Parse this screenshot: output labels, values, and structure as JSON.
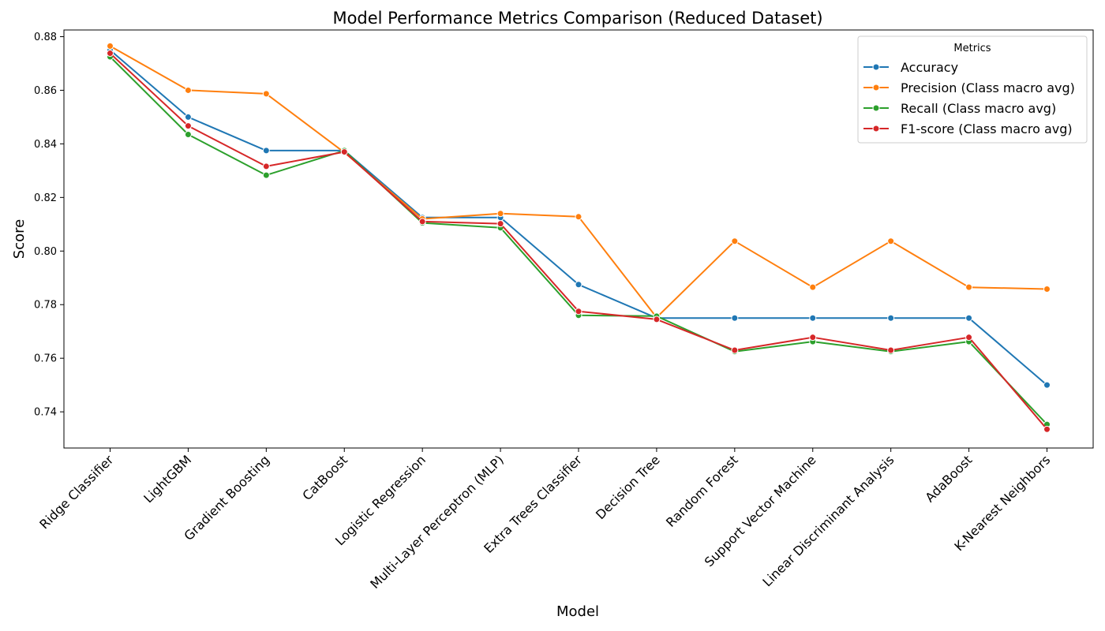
{
  "chart_data": {
    "type": "line",
    "title": "Model Performance Metrics Comparison (Reduced Dataset)",
    "xlabel": "Model",
    "ylabel": "Score",
    "categories": [
      "Ridge Classifier",
      "LightGBM",
      "Gradient Boosting",
      "CatBoost",
      "Logistic Regression",
      "Multi-Layer Perceptron (MLP)",
      "Extra Trees Classifier",
      "Decision Tree",
      "Random Forest",
      "Support Vector Machine",
      "Linear Discriminant Analysis",
      "AdaBoost",
      "K-Nearest Neighbors"
    ],
    "ylim": [
      0.7265,
      0.8825
    ],
    "yticks": [
      0.74,
      0.76,
      0.78,
      0.8,
      0.82,
      0.84,
      0.86,
      0.88
    ],
    "ytick_labels": [
      "0.74",
      "0.76",
      "0.78",
      "0.80",
      "0.82",
      "0.84",
      "0.86",
      "0.88"
    ],
    "grid": false,
    "legend": {
      "title": "Metrics",
      "placement": "top-right"
    },
    "series": [
      {
        "name": "Accuracy",
        "color": "#1f77b4",
        "values": [
          0.875,
          0.85,
          0.8375,
          0.8375,
          0.8125,
          0.8125,
          0.7875,
          0.775,
          0.775,
          0.775,
          0.775,
          0.775,
          0.75
        ]
      },
      {
        "name": "Precision (Class macro avg)",
        "color": "#ff7f0e",
        "values": [
          0.8765,
          0.86,
          0.8587,
          0.8368,
          0.812,
          0.814,
          0.8128,
          0.7752,
          0.8037,
          0.7865,
          0.8037,
          0.7865,
          0.7858
        ]
      },
      {
        "name": "Recall (Class macro avg)",
        "color": "#2ca02c",
        "values": [
          0.8725,
          0.8435,
          0.8283,
          0.8375,
          0.8105,
          0.8087,
          0.776,
          0.7757,
          0.7625,
          0.7662,
          0.7625,
          0.7662,
          0.7353
        ]
      },
      {
        "name": "F1-score (Class macro avg)",
        "color": "#d62728",
        "values": [
          0.8738,
          0.8467,
          0.8316,
          0.837,
          0.811,
          0.8102,
          0.7775,
          0.7745,
          0.763,
          0.7678,
          0.763,
          0.7678,
          0.7335
        ]
      }
    ]
  }
}
